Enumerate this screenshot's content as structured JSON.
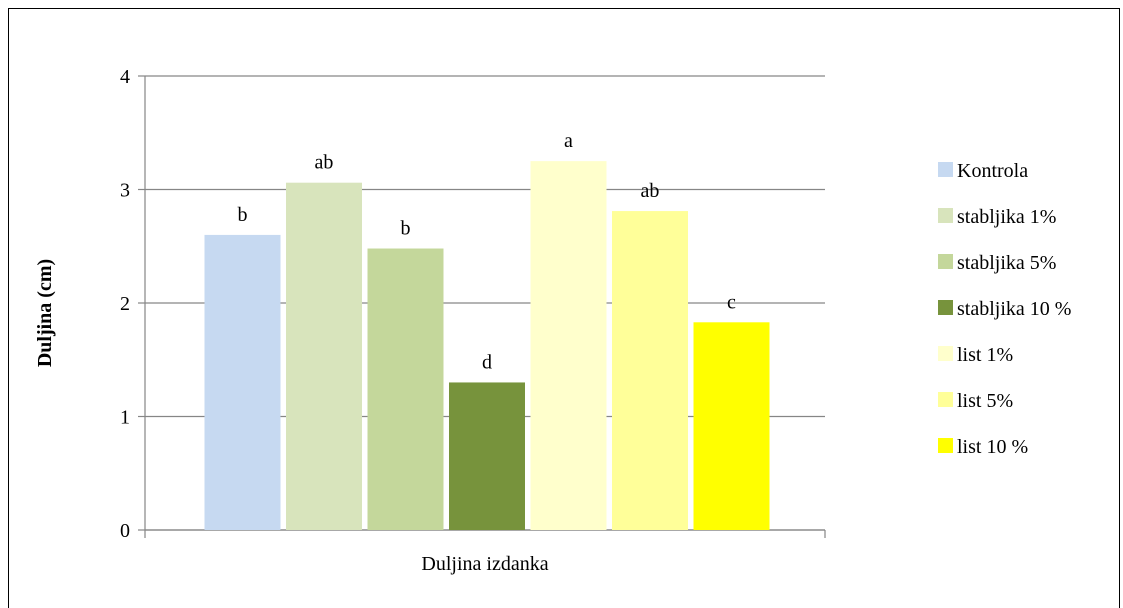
{
  "chart_data": {
    "type": "bar",
    "xlabel": "Duljina izdanka",
    "ylabel": "Duljina (cm)",
    "ylim": [
      0,
      4
    ],
    "yticks": [
      0,
      1,
      2,
      3,
      4
    ],
    "grid": true,
    "legend_position": "right",
    "categories": [
      "Duljina izdanka"
    ],
    "series": [
      {
        "name": "Kontrola",
        "values": [
          2.6
        ],
        "label": "b",
        "color": "#c6d9f1"
      },
      {
        "name": "stabljika 1%",
        "values": [
          3.06
        ],
        "label": "ab",
        "color": "#d8e4bc"
      },
      {
        "name": "stabljika 5%",
        "values": [
          2.48
        ],
        "label": "b",
        "color": "#c4d79b"
      },
      {
        "name": "stabljika 10 %",
        "values": [
          1.3
        ],
        "label": "d",
        "color": "#77933c"
      },
      {
        "name": "list 1%",
        "values": [
          3.25
        ],
        "label": "a",
        "color": "#ffffcc"
      },
      {
        "name": "list 5%",
        "values": [
          2.81
        ],
        "label": "ab",
        "color": "#ffff99"
      },
      {
        "name": "list 10 %",
        "values": [
          1.83
        ],
        "label": "c",
        "color": "#ffff00"
      }
    ]
  }
}
